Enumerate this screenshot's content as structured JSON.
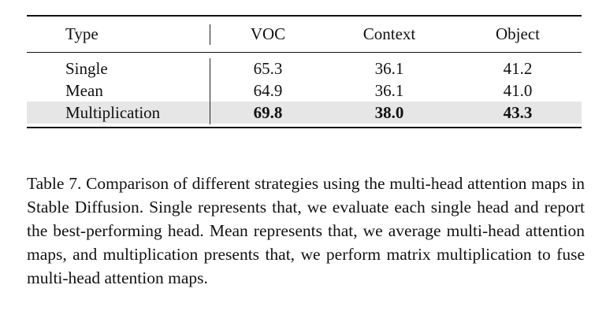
{
  "table": {
    "headers": [
      "Type",
      "VOC",
      "Context",
      "Object"
    ],
    "rows": [
      {
        "type": "Single",
        "voc": "65.3",
        "context": "36.1",
        "object": "41.2"
      },
      {
        "type": "Mean",
        "voc": "64.9",
        "context": "36.1",
        "object": "41.0"
      },
      {
        "type": "Multiplication",
        "voc": "69.8",
        "context": "38.0",
        "object": "43.3"
      }
    ]
  },
  "caption": "Table 7. Comparison of different strategies using the multi-head attention maps in Stable Diffusion. Single represents that, we eval­uate each single head and report the best-performing head. Mean represents that, we average multi-head attention maps, and mul­tiplication presents that, we perform matrix multiplication to fuse multi-head attention maps."
}
